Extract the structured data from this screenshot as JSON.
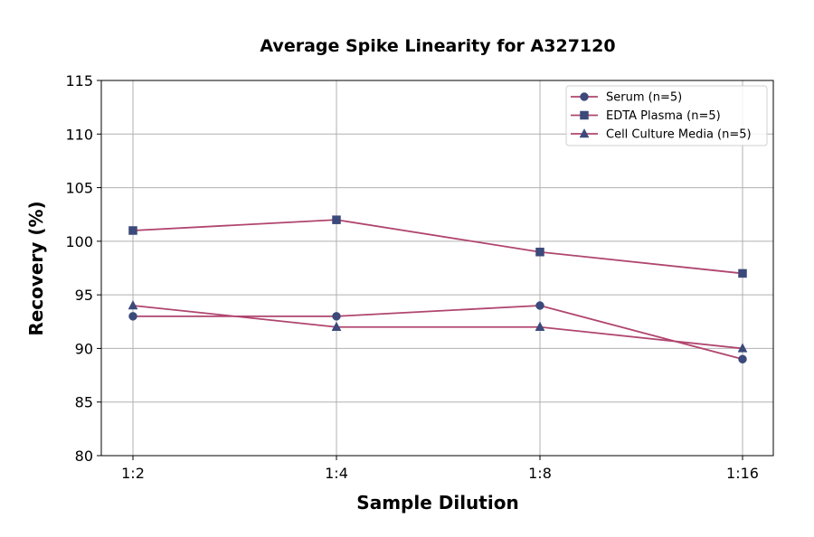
{
  "chart_data": {
    "type": "line",
    "title": "Average Spike Linearity for A327120",
    "xlabel": "Sample Dilution",
    "ylabel": "Recovery (%)",
    "categories": [
      "1:2",
      "1:4",
      "1:8",
      "1:16"
    ],
    "ylim": [
      80,
      115
    ],
    "yticks": [
      80,
      85,
      90,
      95,
      100,
      105,
      110,
      115
    ],
    "grid": true,
    "legend_position": "top-right",
    "line_color": "#b0456e",
    "marker_color": "#3b4a7a",
    "series": [
      {
        "name": "Serum (n=5)",
        "marker": "circle",
        "values": [
          93,
          93,
          94,
          89
        ]
      },
      {
        "name": "EDTA Plasma (n=5)",
        "marker": "square",
        "values": [
          101,
          102,
          99,
          97
        ]
      },
      {
        "name": "Cell Culture Media (n=5)",
        "marker": "triangle",
        "values": [
          94,
          92,
          92,
          90
        ]
      }
    ]
  }
}
